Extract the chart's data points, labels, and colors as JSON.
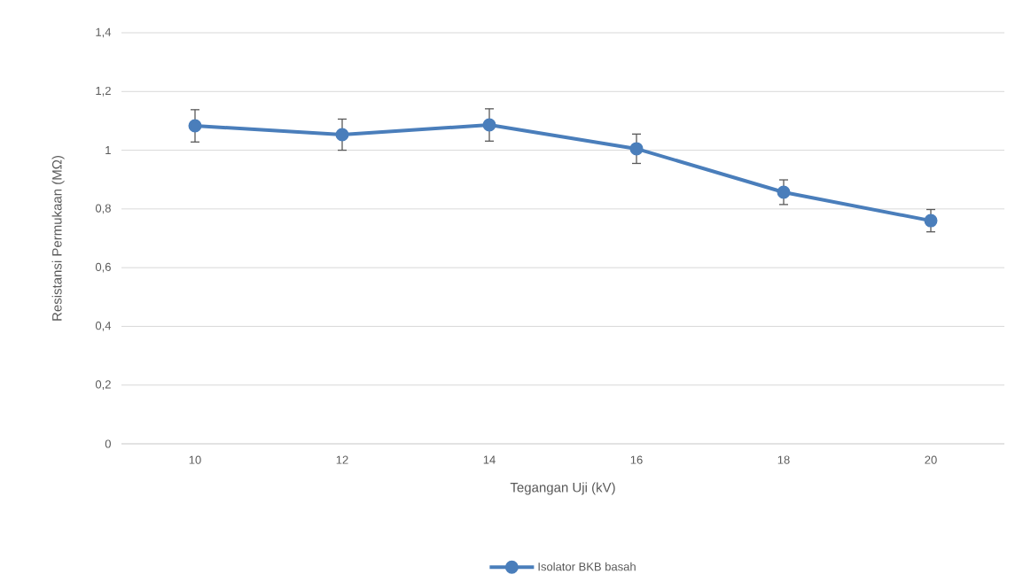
{
  "chart_data": {
    "type": "line",
    "xlabel": "Tegangan Uji (kV)",
    "ylabel": "Resistansi Permukaan (MΩ)",
    "categories": [
      "10",
      "12",
      "14",
      "16",
      "18",
      "20"
    ],
    "series": [
      {
        "name": "Isolator BKB basah",
        "color": "#4a7ebb",
        "values": [
          1.083,
          1.053,
          1.086,
          1.005,
          0.857,
          0.76
        ],
        "errors": [
          0.055,
          0.053,
          0.055,
          0.05,
          0.042,
          0.038
        ]
      }
    ],
    "ylim": [
      0,
      1.4
    ],
    "yticks": [
      0,
      {
        "value": 0.2,
        "label": "0,2"
      },
      {
        "value": 0.4,
        "label": "0,4"
      },
      {
        "value": 0.6,
        "label": "0,6"
      },
      {
        "value": 0.8,
        "label": "0,8"
      },
      1,
      {
        "value": 1.2,
        "label": "1,2"
      },
      {
        "value": 1.4,
        "label": "1,4"
      }
    ],
    "grid": "y",
    "legend": "bottom",
    "marker": "circle",
    "line_style": "solid"
  }
}
